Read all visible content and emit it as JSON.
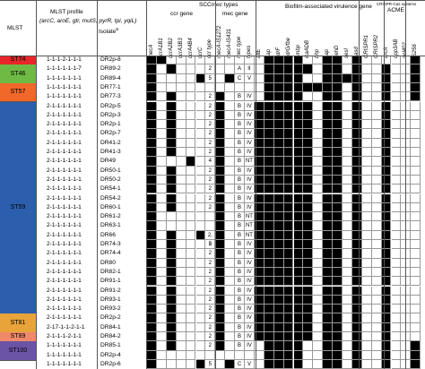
{
  "headers": {
    "mlst": "MLST",
    "profile_title": "MLST profile",
    "profile_genes": "(arcC, aroE, gtr, mutS, pyrR, tpi, yqiL)",
    "isolate": "Isolate",
    "isolate_sup": "a",
    "scc_group": "SCC",
    "scc_group_italic": "mec",
    "scc_group_suffix": " types",
    "ccr_gene": "ccr gene",
    "mec_gene": "mec gene",
    "biofilm_group": "Biofilm-associated virulence gene",
    "crispr_group": "CRISPR-Cas systems",
    "acme_group": "ACME"
  },
  "columns": [
    "mecA",
    "ccrA1B1",
    "ccrA2B2",
    "ccrA3B3",
    "ccrA4B4",
    "ccrC",
    "ccr type",
    "mecA-IS1272",
    "mecA-IS431",
    "mec type",
    "types",
    "atlE",
    "aap",
    "sdrF",
    "sdrG/fbe",
    "embp",
    "icaADB",
    "bhp",
    "aap",
    "gehD",
    "sesI",
    "casd",
    "CRISPR1",
    "CRISPR2",
    "arcA",
    "opp3AB",
    "sel402",
    "IS256"
  ],
  "mlst_groups": [
    {
      "name": "ST74",
      "color": "#e8252a",
      "rows": 1
    },
    {
      "name": "ST46",
      "color": "#6fba44",
      "rows": 2
    },
    {
      "name": "ST57",
      "color": "#f2672a",
      "rows": 2
    },
    {
      "name": "ST59",
      "color": "#2b5fad",
      "rows": 23
    },
    {
      "name": "ST81",
      "color": "#e8a33a",
      "rows": 2
    },
    {
      "name": "ST89",
      "color": "#f0886a",
      "rows": 1
    },
    {
      "name": "ST100",
      "color": "#6b53a6",
      "rows": 2
    }
  ],
  "rows": [
    {
      "profile": "1-1-1-2-1-1-1",
      "isolate": "DR2p-8",
      "ccr": "",
      "mec": "",
      "types": "",
      "scc": "",
      "cells": [
        1,
        1,
        0,
        0,
        0,
        0,
        0,
        0,
        0,
        0,
        0,
        0,
        1,
        1,
        1,
        1,
        0,
        0,
        1,
        1,
        0,
        1,
        0,
        0,
        0,
        0,
        0,
        1
      ]
    },
    {
      "profile": "1-1-1-1-1-1-7",
      "isolate": "DR89-2",
      "ccr": "2",
      "mec": "A",
      "types": "II",
      "scc": "",
      "cells": [
        1,
        0,
        1,
        0,
        0,
        0,
        0,
        0,
        0,
        0,
        0,
        0,
        1,
        1,
        1,
        1,
        1,
        0,
        1,
        1,
        0,
        1,
        0,
        0,
        1,
        0,
        0,
        1
      ]
    },
    {
      "profile": "1-1-1-1-1-1-1",
      "isolate": "DR89-4",
      "ccr": "5",
      "mec": "C",
      "types": "V",
      "scc": "",
      "cells": [
        1,
        0,
        0,
        0,
        0,
        1,
        0,
        0,
        1,
        0,
        0,
        0,
        1,
        1,
        1,
        1,
        0,
        0,
        1,
        1,
        1,
        1,
        0,
        0,
        1,
        0,
        0,
        1
      ]
    },
    {
      "profile": "1-1-1-1-1-1-1",
      "isolate": "DR77-1",
      "ccr": "",
      "mec": "",
      "types": "",
      "scc": "",
      "cells": [
        1,
        0,
        0,
        0,
        0,
        0,
        0,
        0,
        0,
        0,
        0,
        0,
        1,
        1,
        1,
        1,
        1,
        1,
        1,
        1,
        0,
        1,
        0,
        0,
        1,
        0,
        0,
        1
      ]
    },
    {
      "profile": "1-1-1-1-1-1-1",
      "isolate": "DR77-3",
      "ccr": "2",
      "mec": "B",
      "types": "IV",
      "scc": "",
      "cells": [
        1,
        0,
        1,
        0,
        0,
        0,
        0,
        1,
        0,
        0,
        0,
        0,
        1,
        1,
        1,
        1,
        0,
        0,
        1,
        1,
        0,
        1,
        0,
        0,
        1,
        0,
        0,
        1
      ]
    },
    {
      "profile": "2-1-1-1-1-1-1",
      "isolate": "DR2p-5",
      "ccr": "2",
      "mec": "B",
      "types": "IV",
      "scc": "",
      "cells": [
        1,
        0,
        1,
        0,
        0,
        0,
        0,
        1,
        0,
        0,
        0,
        1,
        1,
        1,
        1,
        1,
        1,
        0,
        1,
        1,
        0,
        1,
        0,
        0,
        1,
        0,
        0,
        0
      ]
    },
    {
      "profile": "2-1-1-1-1-1-1",
      "isolate": "DR2p-3",
      "ccr": "2",
      "mec": "B",
      "types": "IV",
      "scc": "",
      "cells": [
        1,
        0,
        1,
        0,
        0,
        0,
        0,
        1,
        0,
        0,
        0,
        1,
        1,
        1,
        1,
        1,
        1,
        0,
        1,
        1,
        0,
        1,
        0,
        0,
        1,
        0,
        0,
        0
      ]
    },
    {
      "profile": "2-1-1-1-1-1-1",
      "isolate": "DR2p-1",
      "ccr": "2",
      "mec": "B",
      "types": "IV",
      "scc": "",
      "cells": [
        1,
        0,
        1,
        0,
        0,
        0,
        0,
        1,
        0,
        0,
        0,
        1,
        1,
        1,
        1,
        1,
        1,
        0,
        1,
        1,
        0,
        1,
        0,
        0,
        1,
        0,
        0,
        0
      ]
    },
    {
      "profile": "2-1-1-1-1-1-1",
      "isolate": "DR2p-7",
      "ccr": "2",
      "mec": "B",
      "types": "IV",
      "scc": "",
      "cells": [
        1,
        0,
        1,
        0,
        0,
        0,
        0,
        1,
        0,
        0,
        0,
        1,
        1,
        1,
        1,
        1,
        1,
        0,
        1,
        1,
        0,
        1,
        0,
        0,
        1,
        0,
        0,
        0
      ]
    },
    {
      "profile": "2-1-1-1-1-1-1",
      "isolate": "DR41-2",
      "ccr": "2",
      "mec": "B",
      "types": "IV",
      "scc": "",
      "cells": [
        1,
        0,
        1,
        0,
        0,
        0,
        0,
        1,
        0,
        0,
        0,
        1,
        1,
        1,
        1,
        1,
        1,
        0,
        1,
        1,
        0,
        1,
        0,
        0,
        1,
        0,
        0,
        0
      ]
    },
    {
      "profile": "2-1-1-1-1-1-1",
      "isolate": "DR41-3",
      "ccr": "2",
      "mec": "B",
      "types": "IV",
      "scc": "",
      "cells": [
        1,
        0,
        1,
        0,
        0,
        0,
        0,
        1,
        0,
        0,
        0,
        1,
        1,
        1,
        1,
        1,
        1,
        0,
        1,
        1,
        0,
        1,
        0,
        0,
        1,
        0,
        0,
        0
      ]
    },
    {
      "profile": "2-1-1-1-1-1-1",
      "isolate": "DR49",
      "ccr": "4",
      "mec": "B",
      "types": "NT",
      "scc": "",
      "cells": [
        1,
        0,
        0,
        0,
        1,
        0,
        0,
        1,
        0,
        0,
        0,
        1,
        1,
        1,
        1,
        1,
        1,
        0,
        1,
        1,
        0,
        1,
        0,
        0,
        1,
        0,
        0,
        0
      ]
    },
    {
      "profile": "2-1-1-1-1-1-1",
      "isolate": "DR50-1",
      "ccr": "2",
      "mec": "B",
      "types": "IV",
      "scc": "",
      "cells": [
        1,
        0,
        1,
        0,
        0,
        0,
        0,
        1,
        0,
        0,
        0,
        1,
        1,
        1,
        1,
        1,
        1,
        0,
        1,
        1,
        0,
        1,
        0,
        0,
        1,
        0,
        0,
        0
      ]
    },
    {
      "profile": "2-1-1-1-1-1-1",
      "isolate": "DR50-2",
      "ccr": "2",
      "mec": "B",
      "types": "IV",
      "scc": "",
      "cells": [
        1,
        0,
        1,
        0,
        0,
        0,
        0,
        1,
        0,
        0,
        0,
        1,
        1,
        1,
        1,
        1,
        1,
        0,
        1,
        1,
        0,
        1,
        0,
        0,
        1,
        0,
        0,
        0
      ]
    },
    {
      "profile": "2-1-1-1-1-1-1",
      "isolate": "DR54-1",
      "ccr": "2",
      "mec": "B",
      "types": "IV",
      "scc": "",
      "cells": [
        1,
        0,
        1,
        0,
        0,
        0,
        0,
        1,
        0,
        0,
        0,
        1,
        1,
        1,
        1,
        1,
        1,
        0,
        1,
        1,
        0,
        1,
        0,
        0,
        1,
        0,
        0,
        0
      ]
    },
    {
      "profile": "2-1-1-1-1-1-1",
      "isolate": "DR54-2",
      "ccr": "2",
      "mec": "B",
      "types": "IV",
      "scc": "",
      "cells": [
        1,
        0,
        1,
        0,
        0,
        0,
        0,
        1,
        0,
        0,
        0,
        1,
        1,
        1,
        1,
        1,
        1,
        0,
        1,
        1,
        0,
        1,
        0,
        0,
        1,
        0,
        0,
        0
      ]
    },
    {
      "profile": "2-1-1-1-1-1-1",
      "isolate": "DR60-1",
      "ccr": "2",
      "mec": "B",
      "types": "IV",
      "scc": "",
      "cells": [
        1,
        0,
        1,
        0,
        0,
        0,
        0,
        1,
        0,
        0,
        0,
        1,
        1,
        1,
        1,
        1,
        1,
        0,
        1,
        1,
        0,
        1,
        0,
        0,
        1,
        0,
        0,
        0
      ]
    },
    {
      "profile": "2-1-1-1-1-1-1",
      "isolate": "DR61-2",
      "ccr": "",
      "mec": "B",
      "types": "NT",
      "scc": "",
      "cells": [
        1,
        0,
        0,
        0,
        0,
        0,
        0,
        1,
        0,
        0,
        0,
        1,
        1,
        1,
        1,
        1,
        1,
        0,
        1,
        1,
        0,
        1,
        0,
        0,
        1,
        0,
        0,
        0
      ]
    },
    {
      "profile": "2-1-1-1-1-1-1",
      "isolate": "DR63-1",
      "ccr": "",
      "mec": "B",
      "types": "NT",
      "scc": "",
      "cells": [
        1,
        0,
        0,
        0,
        0,
        0,
        0,
        1,
        0,
        0,
        0,
        1,
        1,
        1,
        1,
        1,
        1,
        0,
        1,
        1,
        0,
        1,
        0,
        0,
        1,
        0,
        0,
        0
      ]
    },
    {
      "profile": "2-1-1-1-1-1-1",
      "isolate": "DR66",
      "ccr": "2, 5",
      "mec": "B",
      "types": "NT",
      "scc": "",
      "cells": [
        1,
        0,
        1,
        0,
        0,
        1,
        0,
        1,
        0,
        0,
        0,
        1,
        1,
        1,
        1,
        1,
        1,
        0,
        1,
        1,
        0,
        1,
        0,
        0,
        1,
        0,
        0,
        0
      ]
    },
    {
      "profile": "2-1-1-1-1-1-1",
      "isolate": "DR74-3",
      "ccr": "2",
      "mec": "B",
      "types": "IV",
      "scc": "",
      "cells": [
        1,
        0,
        1,
        0,
        0,
        0,
        0,
        1,
        0,
        0,
        0,
        1,
        1,
        1,
        1,
        1,
        1,
        0,
        1,
        1,
        0,
        1,
        0,
        0,
        1,
        0,
        0,
        0
      ]
    },
    {
      "profile": "2-1-1-1-1-1-1",
      "isolate": "DR74-4",
      "ccr": "2",
      "mec": "B",
      "types": "IV",
      "scc": "",
      "cells": [
        1,
        0,
        1,
        0,
        0,
        0,
        0,
        1,
        0,
        0,
        0,
        1,
        1,
        1,
        1,
        1,
        1,
        0,
        1,
        1,
        0,
        1,
        0,
        0,
        1,
        0,
        0,
        0
      ]
    },
    {
      "profile": "2-1-1-1-1-1-1",
      "isolate": "DR80",
      "ccr": "2",
      "mec": "B",
      "types": "IV",
      "scc": "",
      "cells": [
        1,
        0,
        1,
        0,
        0,
        0,
        0,
        1,
        0,
        0,
        0,
        1,
        1,
        1,
        1,
        1,
        1,
        0,
        1,
        1,
        0,
        1,
        0,
        0,
        1,
        0,
        0,
        0
      ]
    },
    {
      "profile": "2-1-1-1-1-1-1",
      "isolate": "DR82-1",
      "ccr": "2",
      "mec": "B",
      "types": "IV",
      "scc": "",
      "cells": [
        1,
        0,
        1,
        0,
        0,
        0,
        0,
        1,
        0,
        0,
        0,
        1,
        1,
        1,
        1,
        1,
        1,
        0,
        1,
        1,
        0,
        1,
        0,
        0,
        1,
        0,
        0,
        0
      ]
    },
    {
      "profile": "2-1-1-1-1-1-1",
      "isolate": "DR91-1",
      "ccr": "2",
      "mec": "B",
      "types": "IV",
      "scc": "",
      "cells": [
        1,
        0,
        1,
        0,
        0,
        0,
        0,
        1,
        0,
        0,
        0,
        1,
        1,
        1,
        1,
        1,
        1,
        0,
        1,
        1,
        0,
        1,
        0,
        0,
        1,
        0,
        0,
        0
      ]
    },
    {
      "profile": "2-1-1-1-1-1-1",
      "isolate": "DR91-2",
      "ccr": "2",
      "mec": "B",
      "types": "IV",
      "scc": "",
      "cells": [
        1,
        0,
        1,
        0,
        0,
        0,
        0,
        1,
        0,
        0,
        0,
        1,
        1,
        1,
        1,
        1,
        1,
        0,
        1,
        1,
        0,
        1,
        0,
        0,
        1,
        0,
        0,
        0
      ]
    },
    {
      "profile": "2-1-1-1-1-1-1",
      "isolate": "DR93-1",
      "ccr": "2",
      "mec": "B",
      "types": "IV",
      "scc": "",
      "cells": [
        1,
        0,
        1,
        0,
        0,
        0,
        0,
        1,
        0,
        0,
        0,
        1,
        1,
        1,
        1,
        1,
        1,
        0,
        1,
        1,
        0,
        1,
        0,
        0,
        1,
        0,
        0,
        0
      ]
    },
    {
      "profile": "2-1-1-1-1-1-1",
      "isolate": "DR93-2",
      "ccr": "2",
      "mec": "B",
      "types": "IV",
      "scc": "",
      "cells": [
        1,
        0,
        1,
        0,
        0,
        0,
        0,
        1,
        0,
        0,
        0,
        1,
        1,
        1,
        1,
        1,
        1,
        0,
        1,
        1,
        0,
        1,
        0,
        0,
        1,
        0,
        0,
        0
      ]
    },
    {
      "profile": "2-1-1-1-1-1-1",
      "isolate": "DR2p-2",
      "ccr": "2",
      "mec": "B",
      "types": "IV",
      "scc": "",
      "cells": [
        1,
        0,
        1,
        0,
        0,
        0,
        0,
        1,
        0,
        0,
        0,
        1,
        1,
        1,
        1,
        1,
        1,
        0,
        1,
        1,
        0,
        1,
        0,
        0,
        1,
        0,
        0,
        0
      ]
    },
    {
      "profile": "2-17-1-1-2-1-1",
      "isolate": "DR84-1",
      "ccr": "2",
      "mec": "B",
      "types": "IV",
      "scc": "",
      "cells": [
        1,
        0,
        1,
        0,
        0,
        0,
        0,
        1,
        0,
        0,
        0,
        1,
        1,
        1,
        1,
        1,
        1,
        0,
        1,
        1,
        0,
        1,
        0,
        0,
        1,
        0,
        0,
        0
      ]
    },
    {
      "profile": "2-1-1-1-2-1-1",
      "isolate": "DR84-2",
      "ccr": "2",
      "mec": "B",
      "types": "IV",
      "scc": "",
      "cells": [
        1,
        0,
        1,
        0,
        0,
        0,
        0,
        1,
        0,
        0,
        0,
        1,
        1,
        1,
        1,
        1,
        1,
        0,
        1,
        1,
        0,
        1,
        0,
        0,
        1,
        0,
        0,
        0
      ]
    },
    {
      "profile": "1-1-1-1-1-1-1",
      "isolate": "DR85-1",
      "ccr": "2",
      "mec": "B",
      "types": "IV",
      "scc": "",
      "cells": [
        1,
        0,
        1,
        0,
        0,
        0,
        0,
        1,
        0,
        0,
        0,
        0,
        1,
        1,
        1,
        1,
        0,
        0,
        1,
        1,
        0,
        1,
        0,
        0,
        1,
        0,
        0,
        1
      ]
    },
    {
      "profile": "1-1-1-1-1-1-1",
      "isolate": "DR2p-4",
      "ccr": "",
      "mec": "",
      "types": "",
      "scc": "",
      "cells": [
        1,
        0,
        0,
        0,
        0,
        0,
        0,
        0,
        0,
        0,
        0,
        0,
        1,
        1,
        1,
        1,
        0,
        0,
        1,
        1,
        0,
        1,
        0,
        0,
        1,
        0,
        0,
        1
      ]
    },
    {
      "profile": "1-1-1-1-1-1-1",
      "isolate": "DR2p-6",
      "ccr": "5",
      "mec": "C",
      "types": "V",
      "scc": "",
      "cells": [
        1,
        0,
        0,
        0,
        0,
        1,
        0,
        0,
        1,
        0,
        0,
        0,
        1,
        1,
        1,
        1,
        0,
        0,
        1,
        1,
        0,
        1,
        0,
        0,
        1,
        0,
        0,
        1
      ]
    }
  ]
}
